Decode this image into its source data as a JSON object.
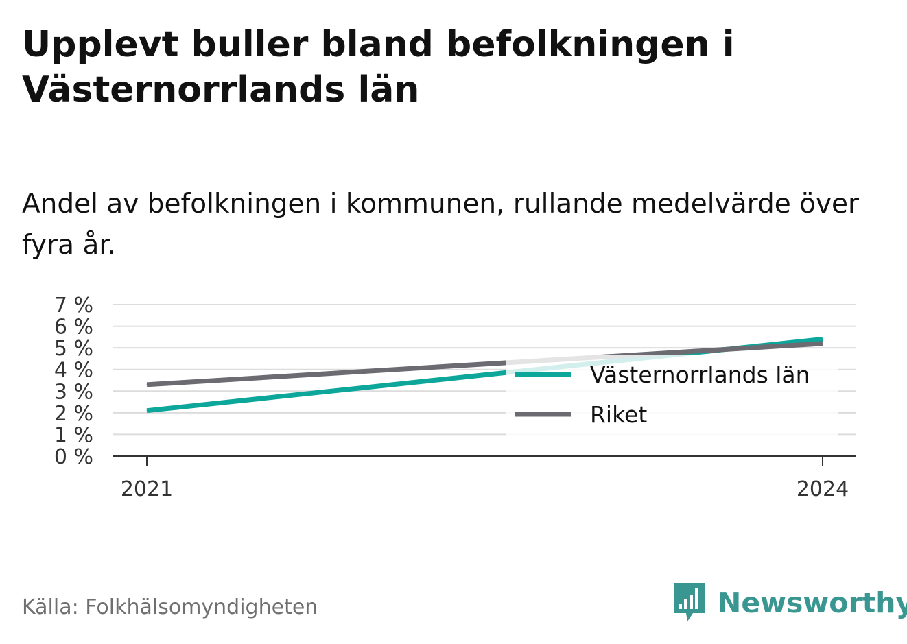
{
  "header": {
    "title": "Upplevt buller bland befolkningen i Västernorrlands län",
    "subtitle": "Andel av befolkningen i kommunen, rullande medelvärde över fyra år."
  },
  "footer": {
    "source": "Källa: Folkhälsomyndigheten",
    "brand": "Newsworthy",
    "brand_icon": "newsworthy-logo-icon"
  },
  "colors": {
    "series_1": "#0da69a",
    "series_2": "#6c6b72",
    "grid": "#dcdcdc",
    "axis": "#333333",
    "brand": "#3a9690"
  },
  "chart_data": {
    "type": "line",
    "x": [
      "2021",
      "2024"
    ],
    "x_ticks": [
      "2021",
      "2024"
    ],
    "y_ticks": [
      "0 %",
      "1 %",
      "2 %",
      "3 %",
      "4 %",
      "5 %",
      "6 %",
      "7 %"
    ],
    "ylim": [
      0,
      7
    ],
    "grid": true,
    "legend_position": "right",
    "series": [
      {
        "name": "Västernorrlands län",
        "values": [
          2.1,
          5.4
        ],
        "color": "#0da69a"
      },
      {
        "name": "Riket",
        "values": [
          3.3,
          5.2
        ],
        "color": "#6c6b72"
      }
    ]
  }
}
